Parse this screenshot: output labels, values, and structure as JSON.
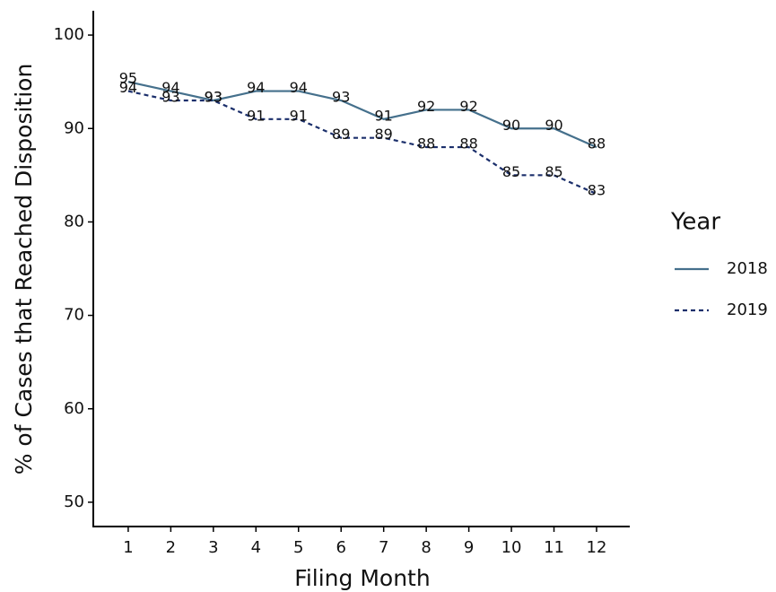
{
  "chart_data": {
    "type": "line",
    "x_label": "Filing Month",
    "y_label": "% of Cases that Reached Disposition",
    "legend_title": "Year",
    "legend_position": "right",
    "x": [
      1,
      2,
      3,
      4,
      5,
      6,
      7,
      8,
      9,
      10,
      11,
      12
    ],
    "series": [
      {
        "name": "2018",
        "color": "#45708c",
        "dash": "solid",
        "values": [
          95,
          94,
          93,
          94,
          94,
          93,
          91,
          92,
          92,
          90,
          90,
          88
        ]
      },
      {
        "name": "2019",
        "color": "#1b2f6b",
        "dash": "dashed",
        "values": [
          94,
          93,
          93,
          91,
          91,
          89,
          89,
          88,
          88,
          85,
          85,
          83
        ]
      }
    ],
    "xlim": [
      0.18,
      12.78
    ],
    "xticks": [
      1,
      2,
      3,
      4,
      5,
      6,
      7,
      8,
      9,
      10,
      11,
      12
    ],
    "ylim": [
      47.4,
      102.6
    ],
    "yticks": [
      50,
      60,
      70,
      80,
      90,
      100
    ],
    "grid": false
  }
}
